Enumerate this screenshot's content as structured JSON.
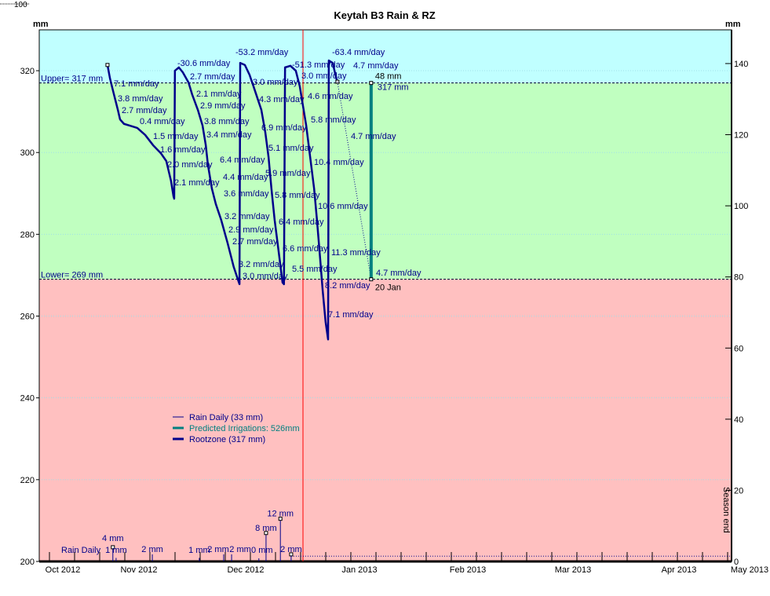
{
  "chart_data": {
    "type": "line",
    "title": "Keytah B3 Rain & RZ",
    "left_axis": {
      "label": "mm",
      "range": [
        200,
        330
      ],
      "ticks": [
        200,
        220,
        240,
        260,
        280,
        300,
        320
      ]
    },
    "right_axis": {
      "label": "mm",
      "range": [
        0,
        149.5
      ],
      "ticks": [
        0,
        20,
        40,
        60,
        80,
        100,
        120,
        140
      ]
    },
    "x_axis": {
      "unit": "days relative to 2013-01-01",
      "range": [
        -73.5,
        119.5
      ],
      "month_labels": [
        "Oct 2012",
        "Nov 2012",
        "Dec 2012",
        "Jan 2013",
        "Feb 2013",
        "Mar 2013",
        "Apr 2013",
        "May 2013"
      ]
    },
    "top_left_stray_label": "100",
    "upper_limit": {
      "value": 317,
      "label": "Upper= 317 mm"
    },
    "lower_limit": {
      "value": 269,
      "label": "Lower= 269 mm"
    },
    "today_day": 0,
    "bands": {
      "above_upper": "#c0ffff",
      "between": "#c0ffc0",
      "below_lower": "#ffc0c0"
    },
    "colors": {
      "rootzone": "#00008b",
      "irrigation": "#008080",
      "today": "#ff0000",
      "rain": "#00008b"
    },
    "legend": [
      {
        "label": "Rain Daily (33 mm)",
        "color": "#00008b"
      },
      {
        "label": "Predicted Irrigations: 526mm",
        "color": "#008080"
      },
      {
        "label": "Rootzone (317 mm)",
        "color": "#00008b"
      }
    ],
    "season_end_label": "Season end",
    "rootzone": [
      [
        -54.5,
        321.4
      ],
      [
        -53.8,
        318.1
      ],
      [
        -52.7,
        314.2
      ],
      [
        -51.6,
        310.4
      ],
      [
        -51.0,
        308.1
      ],
      [
        -49.9,
        307.0
      ],
      [
        -48.4,
        306.6
      ],
      [
        -46.2,
        306.0
      ],
      [
        -44.0,
        304.3
      ],
      [
        -41.8,
        301.8
      ],
      [
        -39.6,
        299.8
      ],
      [
        -38.1,
        297.9
      ],
      [
        -36.8,
        293.1
      ],
      [
        -36.1,
        289.3
      ],
      [
        -35.9,
        288.7
      ],
      [
        -35.7,
        320.0
      ],
      [
        -34.6,
        320.8
      ],
      [
        -33.5,
        319.6
      ],
      [
        -31.9,
        317.1
      ],
      [
        -30.9,
        314.2
      ],
      [
        -29.3,
        310.4
      ],
      [
        -28.0,
        306.6
      ],
      [
        -27.1,
        301.8
      ],
      [
        -26.5,
        297.0
      ],
      [
        -25.4,
        291.2
      ],
      [
        -24.3,
        287.4
      ],
      [
        -22.8,
        283.5
      ],
      [
        -21.0,
        277.8
      ],
      [
        -19.3,
        272.0
      ],
      [
        -18.2,
        269.1
      ],
      [
        -17.7,
        267.8
      ],
      [
        -17.5,
        321.9
      ],
      [
        -16.2,
        321.4
      ],
      [
        -14.9,
        319.0
      ],
      [
        -13.8,
        316.2
      ],
      [
        -12.7,
        313.3
      ],
      [
        -11.6,
        310.4
      ],
      [
        -10.5,
        304.9
      ],
      [
        -9.6,
        298.9
      ],
      [
        -8.8,
        291.2
      ],
      [
        -7.9,
        283.5
      ],
      [
        -6.8,
        275.9
      ],
      [
        -5.7,
        268.2
      ],
      [
        -5.3,
        267.8
      ],
      [
        -5.0,
        320.8
      ],
      [
        -3.5,
        321.2
      ],
      [
        -2.0,
        320.0
      ],
      [
        -0.9,
        316.2
      ],
      [
        0,
        311.4
      ],
      [
        0.9,
        306.6
      ],
      [
        2.0,
        298.9
      ],
      [
        3.1,
        291.2
      ],
      [
        3.9,
        283.5
      ],
      [
        4.8,
        273.9
      ],
      [
        5.5,
        266.2
      ],
      [
        6.3,
        258.6
      ],
      [
        7.0,
        254.3
      ],
      [
        7.2,
        322.5
      ],
      [
        8.3,
        321.9
      ],
      [
        9.2,
        318.4
      ],
      [
        9.6,
        317.3
      ]
    ],
    "predicted": [
      [
        9.6,
        317.3
      ],
      [
        19,
        269
      ]
    ],
    "predicted_irrigation": {
      "day": 19,
      "from": 269,
      "to": 317,
      "amount_label": "48 mm",
      "top_label": "317 mm",
      "date_label": "20 Jan"
    },
    "rain_label": "Rain Daily",
    "rain": [
      {
        "day": -53,
        "mm": 4,
        "label": "4 mm"
      },
      {
        "day": -52.1,
        "mm": 1,
        "label": "1 mm"
      },
      {
        "day": -42,
        "mm": 2,
        "label": "2 mm"
      },
      {
        "day": -28.9,
        "mm": 1,
        "label": "1 mm"
      },
      {
        "day": -22.1,
        "mm": 2,
        "label": "2 mm"
      },
      {
        "day": -19.9,
        "mm": 2,
        "label": "2 mm"
      },
      {
        "day": -12.3,
        "mm": 0,
        "label": "0 mm"
      },
      {
        "day": -10.3,
        "mm": 8,
        "label": "8 mm"
      },
      {
        "day": -6.3,
        "mm": 12,
        "label": "12 mm"
      },
      {
        "day": -3.3,
        "mm": 2,
        "label": "2 mm"
      }
    ],
    "forecast_rain_level": 1.5,
    "rate_annotations": [
      "-30.6 mm/day",
      "2.7 mm/day",
      "7.1 mm/day",
      "3.8 mm/day",
      "2.1 mm/day",
      "2.7 mm/day",
      "2.9 mm/day",
      "0.4 mm/day",
      "3.8 mm/day",
      "1.5 mm/day",
      "3.4 mm/day",
      "1.6 mm/day",
      "2.0 mm/day",
      "6.4 mm/day",
      "2.1 mm/day",
      "4.4 mm/day",
      "3.6 mm/day",
      "3.2 mm/day",
      "2.9 mm/day",
      "2.7 mm/day",
      "3.2 mm/day",
      "3.0 mm/day",
      "-53.2 mm/day",
      "3.0 mm/day",
      "4.3 mm/day",
      "6.9 mm/day",
      "5.1 mm/day",
      "5.9 mm/day",
      "5.8 mm/day",
      "6.4 mm/day",
      "6.6 mm/day",
      "5.5 mm/day",
      "-51.3 mm/day",
      "3.0 mm/day",
      "4.6 mm/day",
      "5.8 mm/day",
      "10.4 mm/day",
      "10.6 mm/day",
      "11.3 mm/day",
      "8.2 mm/day",
      "7.1 mm/day",
      "-63.4 mm/day",
      "4.7 mm/day",
      "4.7 mm/day",
      "4.7 mm/day"
    ]
  }
}
